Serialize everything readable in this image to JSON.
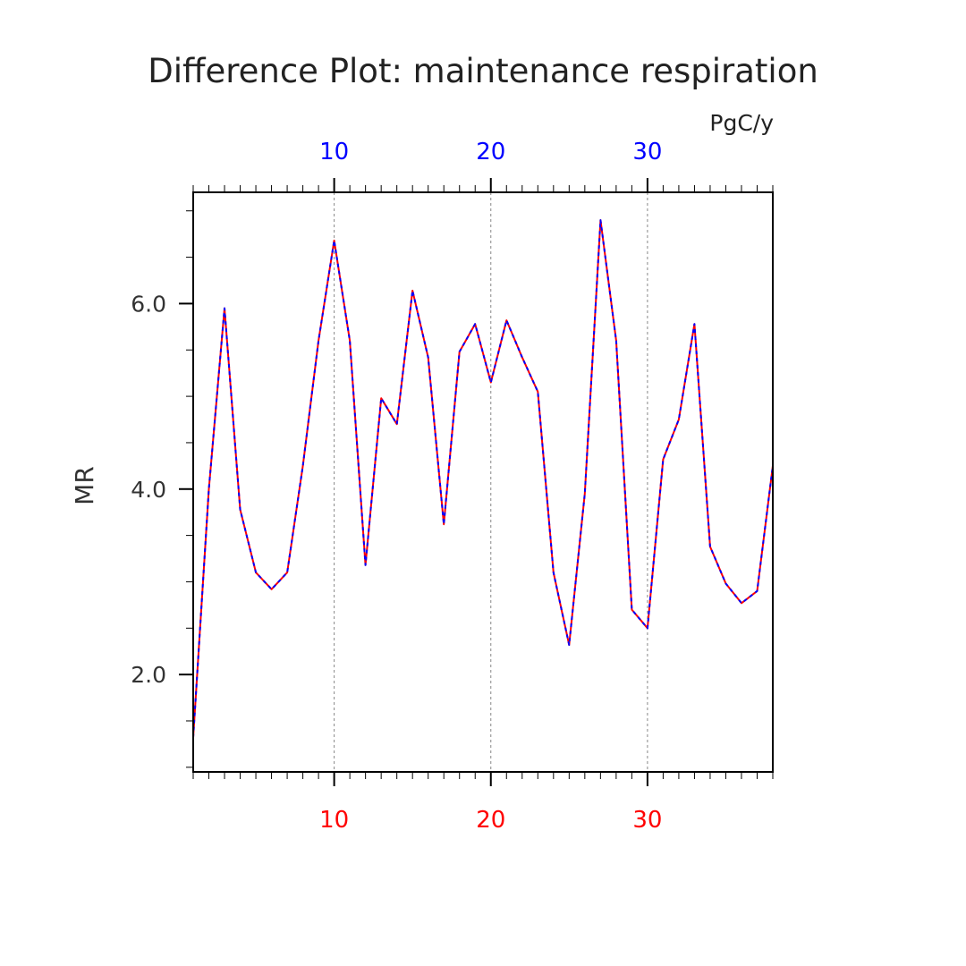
{
  "colors": {
    "top_series": "#0000ff",
    "bottom_series": "#ff0000",
    "axis": "#000000",
    "grid": "#888888"
  },
  "chart_data": {
    "type": "line",
    "title": "Difference Plot: maintenance respiration",
    "units": "PgC/y",
    "ylabel": "MR",
    "xlabel": "",
    "xlim": [
      1,
      38
    ],
    "ylim": [
      0.95,
      7.2
    ],
    "yticks": [
      2.0,
      4.0,
      6.0
    ],
    "ytick_labels": [
      "2.0",
      "4.0",
      "6.0"
    ],
    "xticks_top": [
      10,
      20,
      30
    ],
    "xticks_bottom": [
      10,
      20,
      30
    ],
    "grid": "vertical dashed at x = 10, 20, 30",
    "x": [
      1,
      2,
      3,
      4,
      5,
      6,
      7,
      8,
      9,
      10,
      11,
      12,
      13,
      14,
      15,
      16,
      17,
      18,
      19,
      20,
      21,
      22,
      23,
      24,
      25,
      26,
      27,
      28,
      29,
      30,
      31,
      32,
      33,
      34,
      35,
      36,
      37,
      38
    ],
    "series": [
      {
        "color": "#ff0000",
        "axis": "bottom",
        "values": [
          1.32,
          4.0,
          5.95,
          3.78,
          3.1,
          2.92,
          3.1,
          4.25,
          5.6,
          6.68,
          5.6,
          3.18,
          4.98,
          4.7,
          6.14,
          5.42,
          3.62,
          5.48,
          5.78,
          5.15,
          5.82,
          5.42,
          5.05,
          3.1,
          2.32,
          3.95,
          6.9,
          5.6,
          2.7,
          2.5,
          4.32,
          4.75,
          5.78,
          3.38,
          2.98,
          2.77,
          2.9,
          4.25
        ]
      },
      {
        "color": "#0000ff",
        "axis": "top",
        "values": [
          1.32,
          4.0,
          5.95,
          3.78,
          3.1,
          2.92,
          3.1,
          4.25,
          5.6,
          6.68,
          5.6,
          3.18,
          4.98,
          4.7,
          6.14,
          5.42,
          3.62,
          5.48,
          5.78,
          5.15,
          5.82,
          5.42,
          5.05,
          3.1,
          2.32,
          3.95,
          6.9,
          5.6,
          2.7,
          2.5,
          4.32,
          4.75,
          5.78,
          3.38,
          2.98,
          2.77,
          2.9,
          4.25
        ]
      }
    ]
  }
}
